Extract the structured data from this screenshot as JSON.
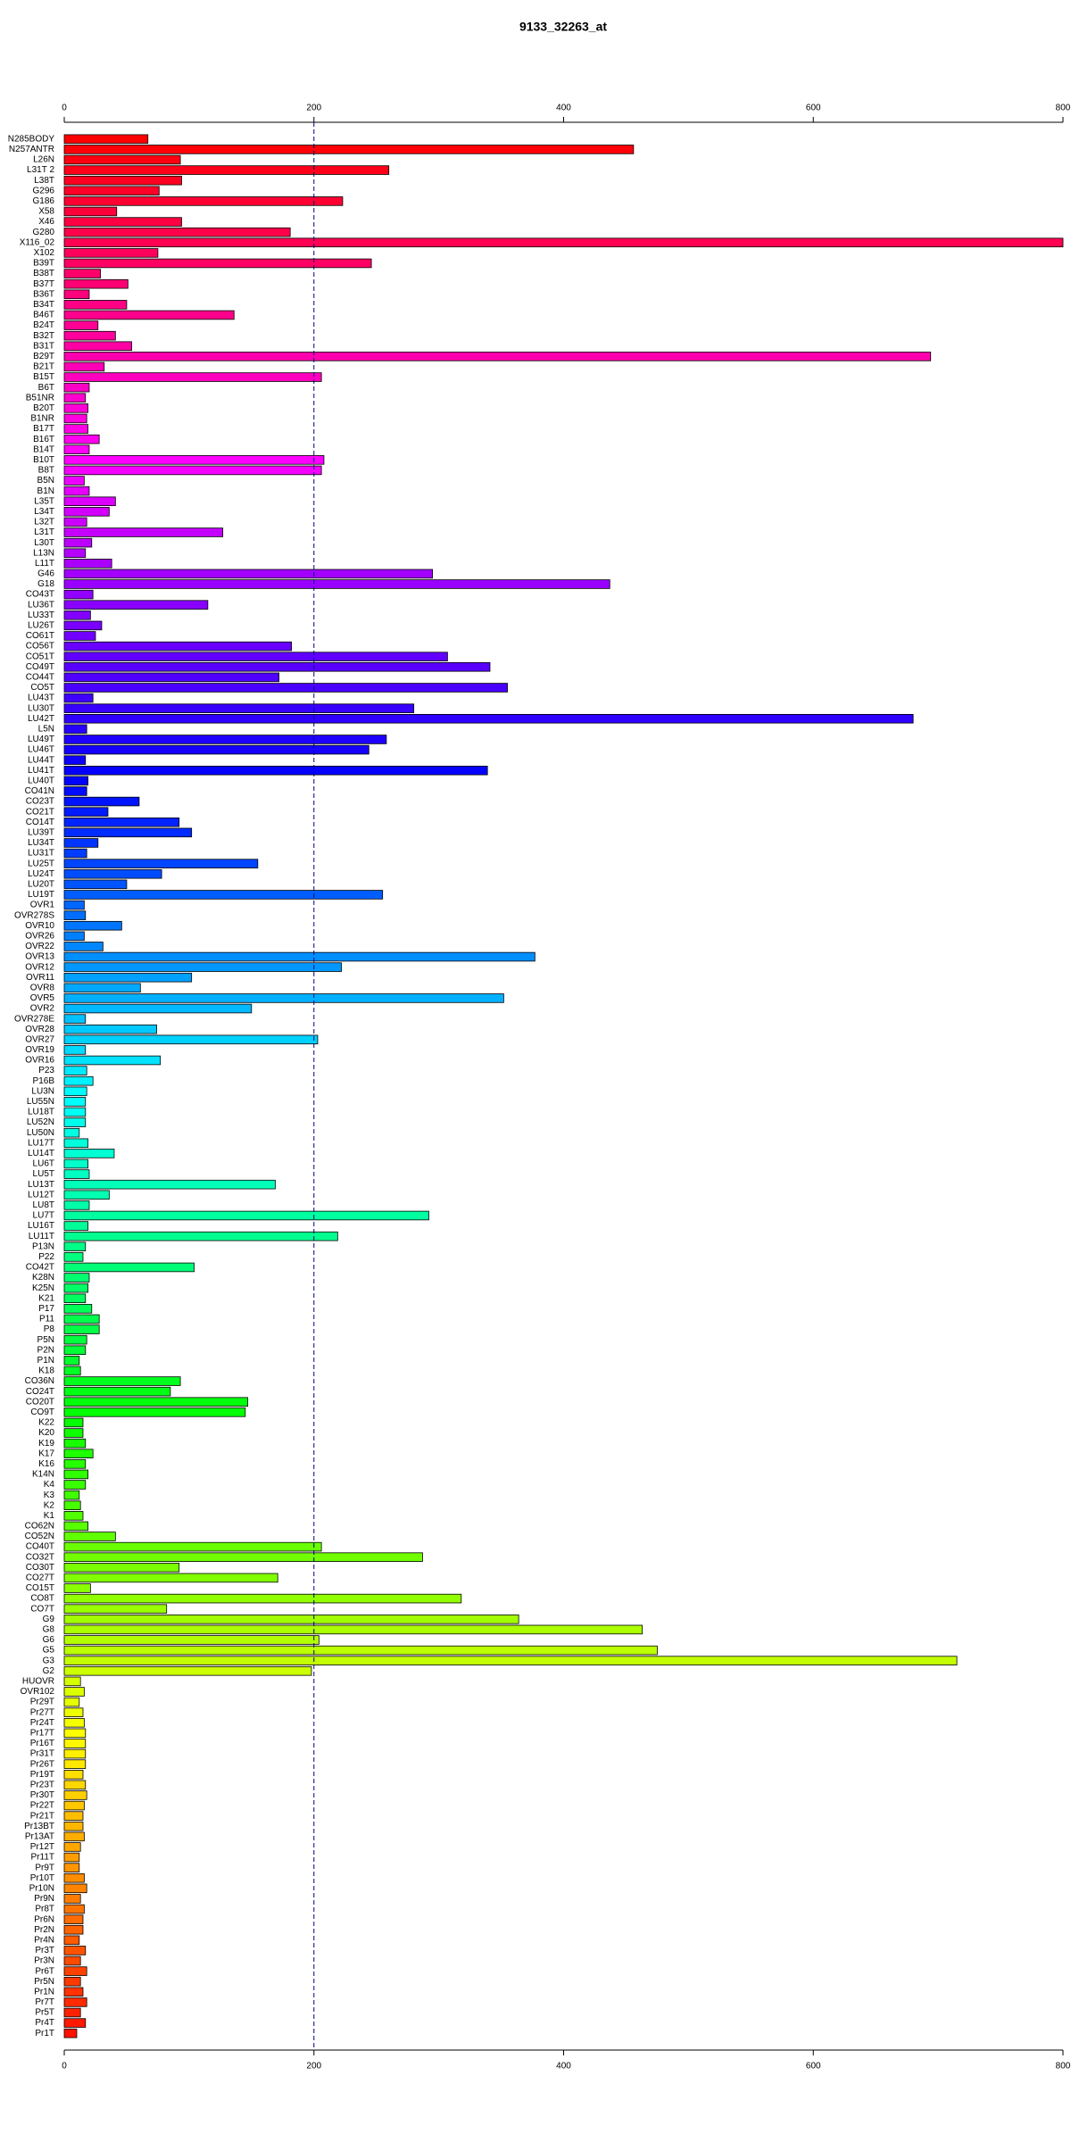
{
  "chart_data": {
    "type": "barh",
    "title": "9133_32263_at",
    "categories": [
      "N285BODY",
      "N257ANTR",
      "L26N",
      "L31T 2",
      "L38T",
      "G296",
      "G186",
      "X58",
      "X46",
      "G280",
      "X116_02",
      "X102",
      "B39T",
      "B38T",
      "B37T",
      "B36T",
      "B34T",
      "B46T",
      "B24T",
      "B32T",
      "B31T",
      "B29T",
      "B21T",
      "B15T",
      "B6T",
      "B51NR",
      "B20T",
      "B1NR",
      "B17T",
      "B16T",
      "B14T",
      "B10T",
      "B8T",
      "B5N",
      "B1N",
      "L35T",
      "L34T",
      "L32T",
      "L31T",
      "L30T",
      "L13N",
      "L11T",
      "G46",
      "G18",
      "CO43T",
      "LU36T",
      "LU33T",
      "LU26T",
      "CO61T",
      "CO56T",
      "CO51T",
      "CO49T",
      "CO44T",
      "CO5T",
      "LU43T",
      "LU30T",
      "LU42T",
      "L5N",
      "LU49T",
      "LU46T",
      "LU44T",
      "LU41T",
      "LU40T",
      "CO41N",
      "CO23T",
      "CO21T",
      "CO14T",
      "LU39T",
      "LU34T",
      "LU31T",
      "LU25T",
      "LU24T",
      "LU20T",
      "LU19T",
      "OVR1",
      "OVR278S",
      "OVR10",
      "OVR26",
      "OVR22",
      "OVR13",
      "OVR12",
      "OVR11",
      "OVR8",
      "OVR5",
      "OVR2",
      "OVR278E",
      "OVR28",
      "OVR27",
      "OVR19",
      "OVR16",
      "P23",
      "P16B",
      "LU3N",
      "LU55N",
      "LU18T",
      "LU52N",
      "LU50N",
      "LU17T",
      "LU14T",
      "LU6T",
      "LU5T",
      "LU13T",
      "LU12T",
      "LU8T",
      "LU7T",
      "LU16T",
      "LU11T",
      "P13N",
      "P22",
      "CO42T",
      "K28N",
      "K25N",
      "K21",
      "P17",
      "P11",
      "P8",
      "P5N",
      "P2N",
      "P1N",
      "K18",
      "CO36N",
      "CO24T",
      "CO20T",
      "CO9T",
      "K22",
      "K20",
      "K19",
      "K17",
      "K16",
      "K14N",
      "K4",
      "K3",
      "K2",
      "K1",
      "CO62N",
      "CO52N",
      "CO40T",
      "CO32T",
      "CO30T",
      "CO27T",
      "CO15T",
      "CO8T",
      "CO7T",
      "G9",
      "G8",
      "G6",
      "G5",
      "G3",
      "G2",
      "HUOVR",
      "OVR102",
      "Pr29T",
      "Pr27T",
      "Pr24T",
      "Pr17T",
      "Pr16T",
      "Pr31T",
      "Pr26T",
      "Pr19T",
      "Pr23T",
      "Pr30T",
      "Pr22T",
      "Pr21T",
      "Pr13BT",
      "Pr13AT",
      "Pr12T",
      "Pr11T",
      "Pr9T",
      "Pr10T",
      "Pr10N",
      "Pr9N",
      "Pr8T",
      "Pr6N",
      "Pr2N",
      "Pr4N",
      "Pr3T",
      "Pr3N",
      "Pr6T",
      "Pr5N",
      "Pr1N",
      "Pr7T",
      "Pr5T",
      "Pr4T",
      "Pr1T"
    ],
    "values": [
      67,
      456,
      93,
      260,
      94,
      76,
      223,
      42,
      94,
      181,
      800,
      75,
      246,
      29,
      51,
      20,
      50,
      136,
      27,
      41,
      54,
      694,
      32,
      206,
      20,
      17,
      19,
      18,
      19,
      28,
      20,
      208,
      206,
      16,
      20,
      41,
      36,
      18,
      127,
      22,
      17,
      38,
      295,
      437,
      23,
      115,
      21,
      30,
      25,
      182,
      307,
      341,
      172,
      355,
      23,
      280,
      680,
      18,
      258,
      244,
      17,
      339,
      19,
      18,
      60,
      35,
      92,
      102,
      27,
      18,
      155,
      78,
      50,
      255,
      16,
      17,
      46,
      16,
      31,
      377,
      222,
      102,
      61,
      352,
      150,
      17,
      74,
      203,
      17,
      77,
      18,
      23,
      18,
      17,
      17,
      17,
      12,
      19,
      40,
      19,
      20,
      169,
      36,
      20,
      292,
      19,
      219,
      17,
      15,
      104,
      20,
      19,
      17,
      22,
      28,
      28,
      18,
      17,
      12,
      13,
      93,
      85,
      147,
      145,
      15,
      15,
      17,
      23,
      17,
      19,
      17,
      12,
      13,
      15,
      19,
      41,
      206,
      287,
      92,
      171,
      21,
      318,
      82,
      364,
      463,
      204,
      475,
      715,
      198,
      13,
      16,
      12,
      15,
      16,
      17,
      17,
      17,
      17,
      15,
      17,
      18,
      16,
      15,
      15,
      16,
      13,
      12,
      12,
      16,
      18,
      13,
      16,
      15,
      15,
      12,
      17,
      13,
      18,
      13,
      15,
      18,
      13,
      17,
      10
    ],
    "color_scheme": "rainbow",
    "xlim": [
      0,
      800
    ],
    "xticks": [
      0,
      200,
      400,
      600,
      800
    ],
    "refline": 200,
    "refline_color": "#000080"
  }
}
